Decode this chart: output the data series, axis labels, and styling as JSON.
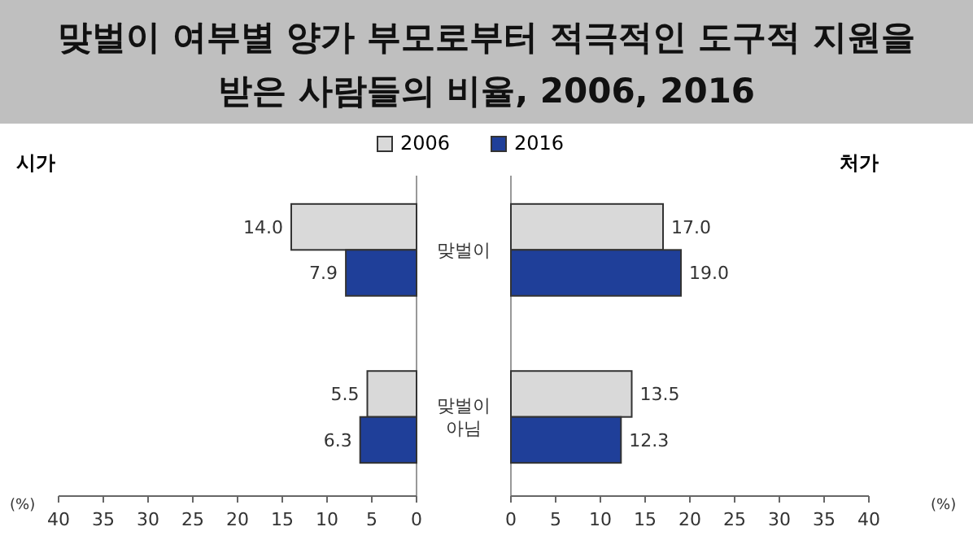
{
  "chart_data": [
    {
      "type": "bar",
      "orientation": "horizontal",
      "title": "맞벌이 여부별 양가 부모로부터 적극적인 도구적 지원을 받은 사람들의 비율, 2006, 2016",
      "subtitle": "시가",
      "xlabel": "(%)",
      "categories": [
        null,
        null
      ],
      "xlim": [
        40,
        0
      ],
      "xticks": [
        40,
        35,
        30,
        25,
        20,
        15,
        10,
        5,
        0
      ],
      "legend": "top",
      "series": [
        {
          "name": "2006",
          "color": "#d9d9d9",
          "values": [
            14.0,
            5.5
          ],
          "value_labels": [
            "14.0",
            "5.5"
          ]
        },
        {
          "name": "2016",
          "color": "#1f3f99",
          "values": [
            7.9,
            6.3
          ],
          "value_labels": [
            "7.9",
            "6.3"
          ]
        }
      ]
    },
    {
      "type": "bar",
      "orientation": "horizontal",
      "title": "처가",
      "xlabel": "(%)",
      "categories": [
        "맞벌이",
        "맞벌이 아님"
      ],
      "xlim": [
        0,
        40
      ],
      "xticks": [
        0,
        5,
        10,
        15,
        20,
        25,
        30,
        35,
        40
      ],
      "series": [
        {
          "color": "#d9d9d9",
          "values": [
            17.0,
            13.5
          ],
          "value_labels": [
            "17.0",
            "13.5"
          ]
        },
        {
          "color": "#1f3f99",
          "values": [
            19.0,
            12.3
          ],
          "value_labels": [
            "19.0",
            "12.3"
          ]
        }
      ]
    }
  ]
}
